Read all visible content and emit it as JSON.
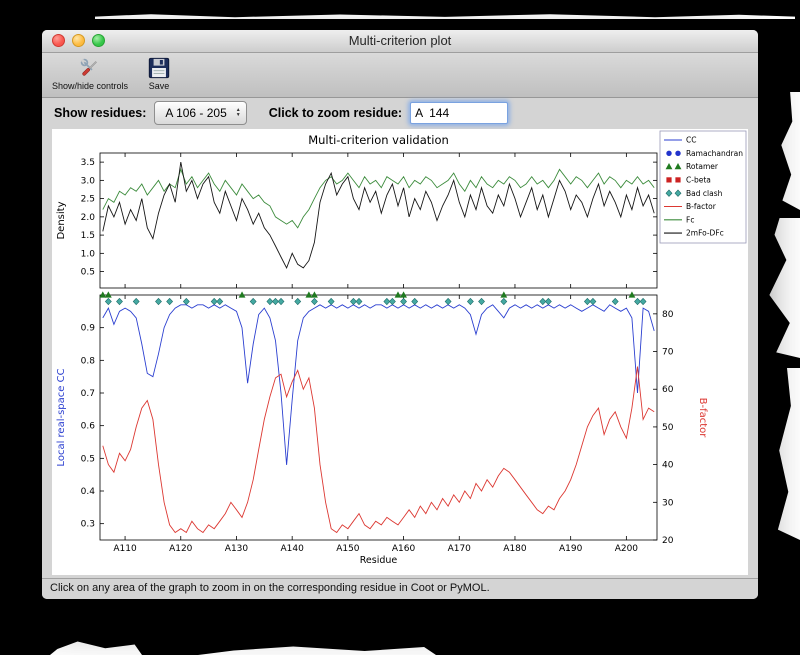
{
  "window": {
    "title": "Multi-criterion plot",
    "toolbar": {
      "show_hide_label": "Show/hide controls",
      "save_label": "Save"
    },
    "controls": {
      "show_residues_label": "Show residues:",
      "residue_range_value": "A 106 - 205",
      "zoom_residue_label": "Click to zoom residue:",
      "zoom_residue_value": "A  144"
    },
    "status_text": "Click on any area of the graph to zoom in on the corresponding residue in Coot or PyMOL."
  },
  "chart_data": {
    "type": "line",
    "title": "Multi-criterion validation",
    "xlabel": "Residue",
    "x_start": 106,
    "xlim": [
      105.5,
      205.5
    ],
    "x_ticks": [
      110,
      120,
      130,
      140,
      150,
      160,
      170,
      180,
      190,
      200
    ],
    "x_tick_labels": [
      "A110",
      "A120",
      "A130",
      "A140",
      "A150",
      "A160",
      "A170",
      "A180",
      "A190",
      "A200"
    ],
    "subplots": [
      {
        "ylabel": "Density",
        "ylabel_color": "#000000",
        "ylim": [
          0.05,
          3.75
        ],
        "yticks": [
          0.5,
          1.0,
          1.5,
          2.0,
          2.5,
          3.0,
          3.5
        ],
        "series": [
          {
            "name": "Fc",
            "color": "#3d8c3d",
            "values": [
              2.2,
              2.5,
              2.4,
              2.7,
              2.6,
              2.8,
              2.7,
              2.9,
              2.6,
              2.8,
              3.0,
              2.7,
              2.9,
              2.8,
              3.3,
              2.9,
              3.1,
              2.8,
              3.0,
              3.2,
              2.9,
              2.7,
              3.0,
              2.8,
              2.6,
              2.9,
              2.7,
              2.5,
              2.6,
              2.4,
              2.3,
              2.0,
              1.9,
              1.8,
              1.9,
              1.7,
              2.0,
              2.2,
              2.5,
              2.8,
              3.0,
              3.1,
              2.9,
              3.0,
              3.2,
              3.0,
              2.8,
              3.1,
              2.9,
              3.0,
              2.8,
              3.1,
              3.0,
              2.9,
              3.1,
              2.8,
              3.0,
              2.9,
              3.1,
              3.0,
              2.8,
              2.9,
              3.0,
              3.2,
              2.9,
              2.7,
              3.0,
              2.8,
              3.1,
              2.9,
              2.8,
              3.0,
              2.9,
              3.1,
              3.0,
              2.8,
              2.9,
              3.1,
              2.9,
              3.0,
              2.8,
              3.0,
              3.3,
              3.1,
              2.9,
              3.1,
              3.0,
              2.8,
              3.0,
              3.2,
              2.9,
              3.1,
              3.0,
              2.8,
              3.0,
              2.9,
              3.1,
              2.9,
              3.0,
              2.8
            ]
          },
          {
            "name": "2mFo-DFc",
            "color": "#161616",
            "values": [
              1.6,
              2.3,
              2.0,
              2.4,
              1.8,
              2.2,
              1.9,
              2.5,
              1.7,
              1.4,
              2.1,
              2.6,
              2.9,
              2.4,
              3.5,
              2.7,
              3.0,
              2.5,
              2.9,
              3.1,
              2.4,
              2.1,
              2.7,
              2.3,
              1.9,
              2.5,
              2.2,
              1.8,
              2.1,
              1.7,
              1.5,
              1.2,
              0.9,
              0.6,
              1.0,
              0.7,
              0.6,
              0.8,
              1.3,
              2.4,
              2.9,
              3.2,
              2.6,
              2.9,
              3.1,
              2.5,
              2.2,
              2.8,
              2.4,
              2.7,
              2.1,
              2.6,
              2.9,
              2.3,
              2.8,
              2.0,
              2.5,
              2.2,
              2.7,
              2.4,
              1.9,
              2.3,
              2.6,
              3.0,
              2.4,
              2.0,
              2.6,
              2.2,
              2.8,
              2.3,
              2.1,
              2.6,
              2.3,
              2.9,
              2.5,
              2.0,
              2.4,
              2.8,
              2.2,
              2.6,
              2.0,
              2.5,
              3.0,
              2.7,
              2.2,
              2.6,
              2.4,
              2.0,
              2.5,
              2.9,
              2.3,
              2.7,
              2.4,
              2.0,
              2.6,
              2.2,
              2.8,
              2.3,
              2.6,
              2.1
            ]
          }
        ]
      },
      {
        "ylabel_left": "Local real-space CC",
        "ylabel_left_color": "#2b3fd0",
        "ylim_left": [
          0.25,
          1.0
        ],
        "yticks_left": [
          0.3,
          0.4,
          0.5,
          0.6,
          0.7,
          0.8,
          0.9
        ],
        "ylabel_right": "B-factor",
        "ylabel_right_color": "#dc3832",
        "ylim_right": [
          20,
          85
        ],
        "yticks_right": [
          20,
          30,
          40,
          50,
          60,
          70,
          80
        ],
        "series": [
          {
            "name": "CC",
            "axis": "left",
            "color": "#2b3fd0",
            "values": [
              0.93,
              0.96,
              0.91,
              0.95,
              0.96,
              0.95,
              0.93,
              0.85,
              0.76,
              0.75,
              0.82,
              0.9,
              0.94,
              0.96,
              0.97,
              0.97,
              0.96,
              0.97,
              0.97,
              0.96,
              0.97,
              0.96,
              0.97,
              0.96,
              0.95,
              0.9,
              0.73,
              0.85,
              0.94,
              0.96,
              0.93,
              0.86,
              0.7,
              0.48,
              0.68,
              0.86,
              0.93,
              0.95,
              0.96,
              0.97,
              0.96,
              0.97,
              0.96,
              0.97,
              0.96,
              0.97,
              0.96,
              0.97,
              0.96,
              0.97,
              0.97,
              0.96,
              0.97,
              0.96,
              0.97,
              0.96,
              0.97,
              0.96,
              0.97,
              0.96,
              0.97,
              0.96,
              0.97,
              0.96,
              0.97,
              0.96,
              0.94,
              0.88,
              0.94,
              0.96,
              0.97,
              0.95,
              0.93,
              0.96,
              0.97,
              0.96,
              0.97,
              0.96,
              0.97,
              0.96,
              0.97,
              0.96,
              0.97,
              0.96,
              0.97,
              0.96,
              0.95,
              0.96,
              0.97,
              0.96,
              0.95,
              0.97,
              0.96,
              0.95,
              0.96,
              0.93,
              0.7,
              0.96,
              0.95,
              0.89
            ]
          },
          {
            "name": "B-factor",
            "axis": "right",
            "color": "#dc3832",
            "values": [
              45,
              40,
              38,
              43,
              41,
              44,
              50,
              55,
              57,
              52,
              40,
              30,
              24,
              22,
              23,
              22,
              25,
              23,
              22,
              24,
              23,
              25,
              27,
              30,
              28,
              26,
              30,
              36,
              44,
              52,
              58,
              63,
              64,
              58,
              62,
              65,
              60,
              63,
              55,
              40,
              30,
              23,
              22,
              24,
              23,
              25,
              27,
              24,
              23,
              25,
              24,
              26,
              25,
              24,
              26,
              28,
              26,
              29,
              27,
              30,
              28,
              31,
              29,
              32,
              30,
              33,
              31,
              35,
              33,
              36,
              34,
              37,
              39,
              38,
              36,
              34,
              32,
              30,
              28,
              27,
              29,
              28,
              31,
              33,
              36,
              40,
              45,
              50,
              53,
              55,
              48,
              52,
              54,
              50,
              47,
              55,
              66,
              52,
              55,
              54
            ]
          }
        ],
        "outlier_markers": [
          {
            "name": "Rotamer",
            "shape": "triangle",
            "color": "#1f7a1f",
            "y_value": 1.0,
            "residues": [
              106,
              107,
              131,
              143,
              144,
              159,
              160,
              178,
              201
            ]
          },
          {
            "name": "Bad clash",
            "shape": "diamond",
            "color": "#45a9a2",
            "stroke": "#1c6a66",
            "y_value": 0.98,
            "residues": [
              107,
              109,
              112,
              116,
              118,
              121,
              126,
              127,
              133,
              136,
              137,
              138,
              141,
              144,
              147,
              151,
              152,
              157,
              158,
              160,
              162,
              168,
              172,
              174,
              178,
              185,
              186,
              193,
              194,
              198,
              202,
              203
            ]
          },
          {
            "name": "C-beta",
            "shape": "square",
            "color": "#cc2222",
            "y_value": 0.98,
            "residues": []
          },
          {
            "name": "Ramachandran",
            "shape": "circle",
            "color": "#2233cc",
            "y_value": 0.98,
            "residues": []
          }
        ]
      }
    ],
    "legend": [
      {
        "label": "CC",
        "type": "line",
        "color": "#2b3fd0"
      },
      {
        "label": "Ramachandran",
        "type": "circle",
        "color": "#2233cc"
      },
      {
        "label": "Rotamer",
        "type": "triangle",
        "color": "#1f7a1f"
      },
      {
        "label": "C-beta",
        "type": "square",
        "color": "#cc2222"
      },
      {
        "label": "Bad clash",
        "type": "diamond",
        "color": "#45a9a2",
        "stroke": "#1c6a66"
      },
      {
        "label": "B-factor",
        "type": "line",
        "color": "#dc3832"
      },
      {
        "label": "Fc",
        "type": "line",
        "color": "#3d8c3d"
      },
      {
        "label": "2mFo-DFc",
        "type": "line",
        "color": "#161616"
      }
    ]
  }
}
